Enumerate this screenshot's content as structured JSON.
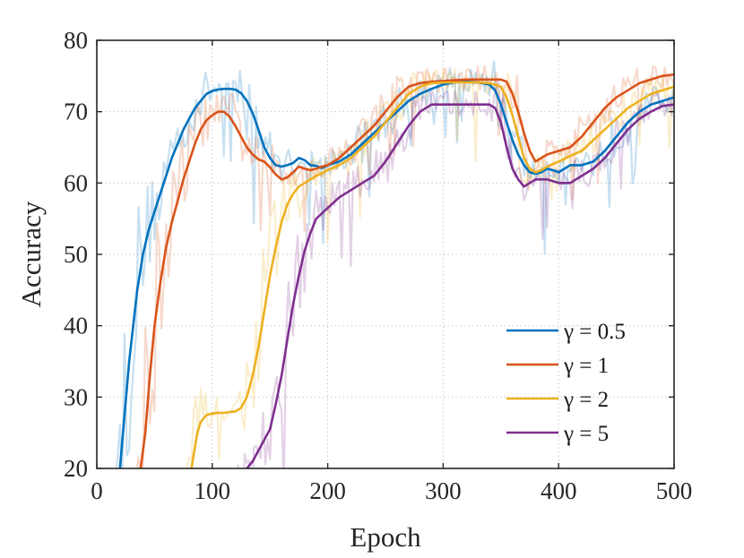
{
  "chart_data": {
    "type": "line",
    "title": "",
    "xlabel": "Epoch",
    "ylabel": "Accuracy",
    "xlim": [
      0,
      500
    ],
    "ylim": [
      20,
      80
    ],
    "xticks": [
      "0",
      "100",
      "200",
      "300",
      "400",
      "500"
    ],
    "yticks": [
      "20",
      "30",
      "40",
      "50",
      "60",
      "70",
      "80"
    ],
    "grid": true,
    "legend_position": "bottom-right",
    "series": [
      {
        "name": "γ = 0.5",
        "color": "#0072bd",
        "x": [
          20,
          28,
          35,
          40,
          45,
          50,
          55,
          60,
          65,
          70,
          75,
          80,
          85,
          90,
          95,
          100,
          105,
          110,
          115,
          120,
          125,
          130,
          135,
          140,
          145,
          150,
          155,
          160,
          165,
          170,
          175,
          180,
          185,
          190,
          195,
          200,
          210,
          220,
          230,
          240,
          250,
          260,
          270,
          280,
          290,
          300,
          310,
          320,
          330,
          340,
          345,
          350,
          355,
          360,
          365,
          370,
          375,
          380,
          385,
          390,
          395,
          400,
          410,
          420,
          430,
          440,
          450,
          460,
          470,
          480,
          490,
          500
        ],
        "values": [
          20,
          35,
          45,
          50,
          53.5,
          56,
          58.5,
          61,
          63.5,
          65.5,
          67.5,
          69,
          70.5,
          71.5,
          72.5,
          72.9,
          73.1,
          73.2,
          73.2,
          73.1,
          72.6,
          71.5,
          69.8,
          67.5,
          65,
          63.5,
          62.5,
          62.3,
          62.5,
          62.8,
          63.5,
          63.2,
          62.5,
          62.4,
          62.1,
          62.5,
          63,
          64,
          65.5,
          67,
          68.5,
          70,
          71.5,
          72.5,
          73.2,
          73.8,
          74.1,
          74.2,
          74.1,
          73.8,
          73,
          71,
          68.5,
          66,
          64,
          62.5,
          61.5,
          61.3,
          61.5,
          62,
          61.8,
          61.5,
          62.5,
          62.5,
          63,
          64.5,
          66.5,
          68.5,
          70,
          71,
          71.5,
          72
        ]
      },
      {
        "name": "γ = 1",
        "color": "#d95319",
        "x": [
          38,
          42,
          46,
          50,
          55,
          60,
          65,
          70,
          75,
          80,
          85,
          90,
          95,
          100,
          105,
          110,
          115,
          120,
          125,
          130,
          135,
          140,
          145,
          150,
          155,
          160,
          165,
          170,
          175,
          180,
          185,
          190,
          195,
          200,
          210,
          220,
          230,
          240,
          250,
          260,
          270,
          280,
          290,
          300,
          310,
          320,
          330,
          340,
          350,
          355,
          360,
          365,
          370,
          375,
          380,
          385,
          390,
          400,
          410,
          420,
          430,
          440,
          450,
          460,
          470,
          480,
          490,
          500
        ],
        "values": [
          20,
          25,
          33,
          40,
          46,
          51,
          54.5,
          57.5,
          60.5,
          63,
          65.5,
          67.5,
          68.8,
          69.5,
          70,
          70,
          69.3,
          68,
          66.5,
          65,
          64,
          63.3,
          63,
          62.2,
          61.2,
          60.5,
          60.8,
          61.5,
          62.3,
          62,
          61.8,
          62,
          62.3,
          62.5,
          63.5,
          65,
          66.5,
          68,
          70,
          72,
          73.5,
          74,
          74.2,
          74.3,
          74.4,
          74.5,
          74.5,
          74.5,
          74.5,
          74.2,
          72.5,
          70,
          67,
          64.5,
          63,
          63.5,
          64,
          64.5,
          65,
          66.5,
          68.5,
          70.5,
          72,
          73,
          74,
          74.5,
          75,
          75.2
        ]
      },
      {
        "name": "γ = 2",
        "color": "#edb120",
        "x": [
          82,
          87,
          90,
          95,
          100,
          105,
          110,
          115,
          120,
          125,
          130,
          135,
          140,
          145,
          150,
          155,
          160,
          165,
          170,
          175,
          180,
          185,
          190,
          200,
          210,
          220,
          230,
          240,
          250,
          260,
          270,
          280,
          290,
          300,
          310,
          320,
          330,
          340,
          350,
          355,
          360,
          365,
          370,
          375,
          380,
          385,
          390,
          400,
          410,
          420,
          430,
          440,
          450,
          460,
          470,
          480,
          490,
          500
        ],
        "values": [
          20,
          25,
          26.5,
          27.5,
          27.7,
          27.8,
          27.8,
          27.9,
          28,
          28.5,
          30,
          33,
          37,
          42,
          47,
          51,
          54.5,
          57,
          58.5,
          59.5,
          60,
          60.5,
          61,
          61.8,
          62.5,
          63.5,
          65,
          66.5,
          68.5,
          70.5,
          72.5,
          73.5,
          74,
          74.1,
          74.1,
          74.1,
          74.1,
          74,
          73.5,
          72,
          69.5,
          66.5,
          63.5,
          62,
          61.5,
          61.8,
          62.3,
          63,
          63.8,
          64.5,
          66,
          67.5,
          69,
          70.5,
          71.5,
          72.5,
          73,
          73.5
        ]
      },
      {
        "name": "γ = 5",
        "color": "#7e2f8e",
        "x": [
          130,
          135,
          140,
          145,
          150,
          155,
          160,
          165,
          170,
          175,
          180,
          185,
          190,
          200,
          210,
          220,
          230,
          240,
          250,
          260,
          270,
          280,
          290,
          300,
          310,
          320,
          330,
          340,
          345,
          350,
          355,
          360,
          365,
          370,
          375,
          380,
          385,
          390,
          400,
          410,
          420,
          430,
          440,
          450,
          460,
          470,
          480,
          490,
          500
        ],
        "values": [
          20,
          21,
          22.5,
          24,
          25.5,
          29,
          33,
          38,
          43,
          47,
          50.5,
          53,
          55,
          56.5,
          58,
          59,
          60,
          61,
          63,
          65.5,
          68,
          70,
          71,
          71,
          71,
          71,
          71,
          71,
          70.5,
          68.5,
          65,
          62,
          60.5,
          59.5,
          60,
          60.5,
          60.5,
          60.5,
          60,
          60,
          61,
          62,
          63.5,
          65.5,
          67.5,
          69,
          70,
          70.8,
          71
        ]
      }
    ]
  }
}
